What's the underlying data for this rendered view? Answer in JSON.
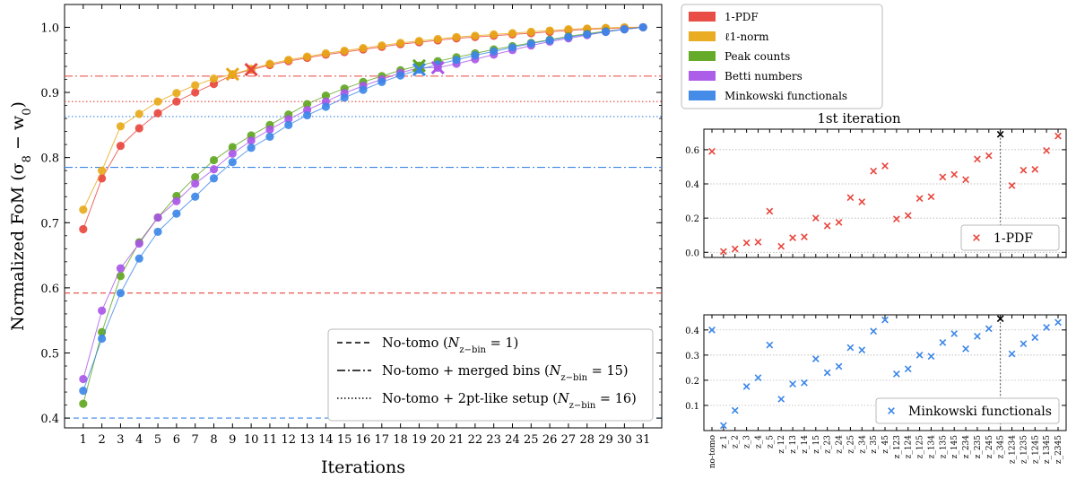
{
  "chart_data": [
    {
      "type": "line",
      "ylabel": "Normalized FoM (σ8 − w0)",
      "xlabel": "Iterations",
      "xlim": [
        0,
        32
      ],
      "ylim": [
        0.385,
        1.035
      ],
      "x": [
        1,
        2,
        3,
        4,
        5,
        6,
        7,
        8,
        9,
        10,
        11,
        12,
        13,
        14,
        15,
        16,
        17,
        18,
        19,
        20,
        21,
        22,
        23,
        24,
        25,
        26,
        27,
        28,
        29,
        30,
        31
      ],
      "xticks": [
        "1",
        "2",
        "3",
        "4",
        "5",
        "6",
        "7",
        "8",
        "9",
        "10",
        "11",
        "12",
        "13",
        "14",
        "15",
        "16",
        "17",
        "18",
        "19",
        "20",
        "21",
        "22",
        "23",
        "24",
        "25",
        "26",
        "27",
        "28",
        "29",
        "30",
        "31"
      ],
      "yticks": [
        "0.4",
        "0.5",
        "0.6",
        "0.7",
        "0.8",
        "0.9",
        "1.0"
      ],
      "ytick_values": [
        0.4,
        0.5,
        0.6,
        0.7,
        0.8,
        0.9,
        1.0
      ],
      "series": [
        {
          "name": "1-PDF",
          "color": "#e8453c",
          "values": [
            0.69,
            0.768,
            0.818,
            0.845,
            0.868,
            0.886,
            0.9,
            0.913,
            0.927,
            0.935,
            0.942,
            0.948,
            0.953,
            0.958,
            0.962,
            0.966,
            0.97,
            0.974,
            0.977,
            0.98,
            0.983,
            0.985,
            0.987,
            0.989,
            0.991,
            0.993,
            0.995,
            0.997,
            0.998,
            0.999,
            1.0
          ],
          "best_iteration": 10,
          "best_value": 0.935
        },
        {
          "name": "ℓ1-norm",
          "color": "#e8a817",
          "values": [
            0.72,
            0.78,
            0.848,
            0.867,
            0.886,
            0.899,
            0.911,
            0.921,
            0.928,
            0.936,
            0.944,
            0.95,
            0.955,
            0.96,
            0.964,
            0.968,
            0.972,
            0.976,
            0.979,
            0.982,
            0.985,
            0.987,
            0.989,
            0.991,
            0.993,
            0.995,
            0.997,
            0.998,
            0.999,
            1.0,
            1.0
          ],
          "best_iteration": 9,
          "best_value": 0.928
        },
        {
          "name": "Peak counts",
          "color": "#5ea51e",
          "values": [
            0.422,
            0.532,
            0.618,
            0.67,
            0.708,
            0.741,
            0.77,
            0.796,
            0.816,
            0.834,
            0.85,
            0.866,
            0.882,
            0.895,
            0.906,
            0.916,
            0.925,
            0.934,
            0.941,
            0.948,
            0.954,
            0.96,
            0.966,
            0.971,
            0.976,
            0.981,
            0.986,
            0.99,
            0.994,
            0.997,
            1.0
          ],
          "best_iteration": 19,
          "best_value": 0.941
        },
        {
          "name": "Betti numbers",
          "color": "#a855e8",
          "values": [
            0.46,
            0.565,
            0.63,
            0.668,
            0.708,
            0.733,
            0.76,
            0.782,
            0.806,
            0.826,
            0.843,
            0.859,
            0.873,
            0.886,
            0.899,
            0.91,
            0.92,
            0.93,
            0.938,
            0.938,
            0.944,
            0.951,
            0.958,
            0.965,
            0.972,
            0.978,
            0.983,
            0.988,
            0.993,
            0.997,
            1.0
          ],
          "best_iteration": 20,
          "best_value": 0.938
        },
        {
          "name": "Minkowski functionals",
          "color": "#3b86e8",
          "values": [
            0.442,
            0.522,
            0.592,
            0.645,
            0.686,
            0.714,
            0.74,
            0.768,
            0.793,
            0.815,
            0.832,
            0.85,
            0.865,
            0.878,
            0.892,
            0.904,
            0.916,
            0.926,
            0.935,
            0.943,
            0.95,
            0.957,
            0.963,
            0.969,
            0.975,
            0.98,
            0.985,
            0.989,
            0.993,
            0.997,
            1.0
          ],
          "best_iteration": 19,
          "best_value": 0.935
        }
      ],
      "reference_lines": [
        {
          "value": 0.4,
          "color": "#3b86e8",
          "style": "dashed"
        },
        {
          "value": 0.592,
          "color": "#e8453c",
          "style": "dashed"
        },
        {
          "value": 0.785,
          "color": "#3b86e8",
          "style": "dashdot"
        },
        {
          "value": 0.925,
          "color": "#e8453c",
          "style": "dashdot"
        },
        {
          "value": 0.863,
          "color": "#3b86e8",
          "style": "dotted"
        },
        {
          "value": 0.886,
          "color": "#e8453c",
          "style": "dotted"
        }
      ],
      "linestyle_legend": [
        {
          "style": "dashed",
          "prefix": "No-tomo (",
          "math": "N",
          "sub": "z−bin",
          "eq": " = 1)"
        },
        {
          "style": "dashdot",
          "prefix": "No-tomo + merged bins (",
          "math": "N",
          "sub": "z−bin",
          "eq": " = 15)"
        },
        {
          "style": "dotted",
          "prefix": "No-tomo + 2pt-like setup (",
          "math": "N",
          "sub": "z−bin",
          "eq": " = 16)"
        }
      ]
    },
    {
      "type": "scatter",
      "title": "1st iteration",
      "categories": [
        "no-tomo",
        "z_1",
        "z_2",
        "z_3",
        "z_4",
        "z_5",
        "z_12",
        "z_13",
        "z_14",
        "z_15",
        "z_23",
        "z_24",
        "z_25",
        "z_34",
        "z_35",
        "z_45",
        "z_123",
        "z_124",
        "z_125",
        "z_134",
        "z_135",
        "z_145",
        "z_234",
        "z_235",
        "z_245",
        "z_345",
        "z_1234",
        "z_1235",
        "z_1245",
        "z_1345",
        "z_2345"
      ],
      "best_index": 25,
      "panels": [
        {
          "name": "1-PDF",
          "color": "#e8453c",
          "ylim": [
            -0.03,
            0.72
          ],
          "yticks": [
            "0.0",
            "0.2",
            "0.4",
            "0.6"
          ],
          "ytick_values": [
            0.0,
            0.2,
            0.4,
            0.6
          ],
          "values": [
            0.59,
            0.005,
            0.02,
            0.055,
            0.06,
            0.24,
            0.035,
            0.085,
            0.09,
            0.2,
            0.155,
            0.175,
            0.32,
            0.295,
            0.475,
            0.505,
            0.195,
            0.215,
            0.315,
            0.325,
            0.44,
            0.455,
            0.425,
            0.545,
            0.565,
            0.69,
            0.39,
            0.48,
            0.485,
            0.595,
            0.68
          ]
        },
        {
          "name": "Minkowski functionals",
          "color": "#3b86e8",
          "ylim": [
            0.0,
            0.46
          ],
          "yticks": [
            "0.1",
            "0.2",
            "0.3",
            "0.4"
          ],
          "ytick_values": [
            0.1,
            0.2,
            0.3,
            0.4
          ],
          "values": [
            0.4,
            0.02,
            0.08,
            0.175,
            0.21,
            0.34,
            0.125,
            0.185,
            0.19,
            0.285,
            0.23,
            0.255,
            0.33,
            0.32,
            0.395,
            0.44,
            0.225,
            0.245,
            0.3,
            0.295,
            0.35,
            0.385,
            0.325,
            0.375,
            0.405,
            0.445,
            0.305,
            0.345,
            0.37,
            0.41,
            0.43
          ]
        }
      ]
    }
  ]
}
